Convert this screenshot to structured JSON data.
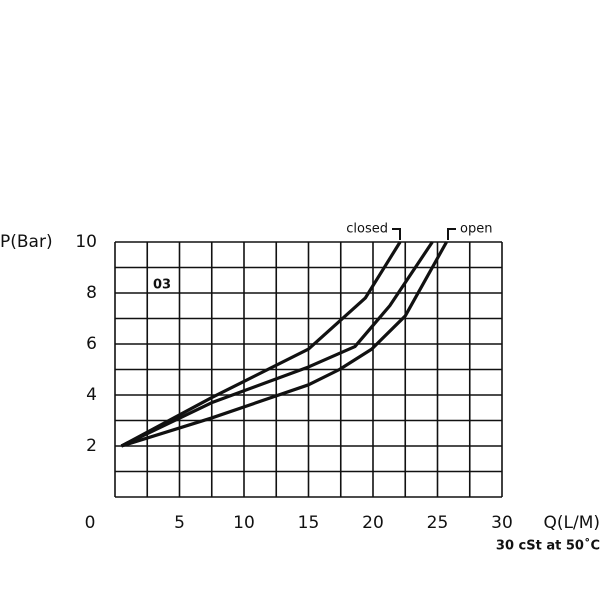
{
  "chart_data": {
    "type": "line",
    "y_label": "P(Bar)",
    "x_label": "Q(L/M)",
    "xlim": [
      0,
      30
    ],
    "ylim": [
      0,
      10
    ],
    "xticks": [
      0,
      5,
      10,
      15,
      20,
      25,
      30
    ],
    "yticks": [
      2,
      4,
      6,
      8,
      10
    ],
    "xgrid": [
      0,
      2.5,
      5,
      7.5,
      10,
      12.5,
      15,
      17.5,
      20,
      22.5,
      25,
      27.5,
      30
    ],
    "ygrid": [
      0,
      1,
      2,
      3,
      4,
      5,
      6,
      7,
      8,
      9,
      10
    ],
    "color": "#111111",
    "series": [
      {
        "name": "closed",
        "x": [
          0.5,
          7.5,
          15,
          19.4,
          22.1
        ],
        "values": [
          2,
          3.9,
          5.8,
          7.8,
          10
        ]
      },
      {
        "x": [
          0.5,
          7.5,
          15,
          18.6,
          21.3,
          24.6
        ],
        "values": [
          2,
          3.7,
          5.1,
          5.9,
          7.5,
          10
        ]
      },
      {
        "name": "open",
        "x": [
          0.5,
          7.5,
          15,
          17.4,
          19.9,
          22.5,
          25.7
        ],
        "values": [
          2,
          3.1,
          4.4,
          5,
          5.8,
          7.1,
          10
        ]
      }
    ],
    "annotations": [
      "03",
      "30 cSt at 50˚C"
    ]
  }
}
